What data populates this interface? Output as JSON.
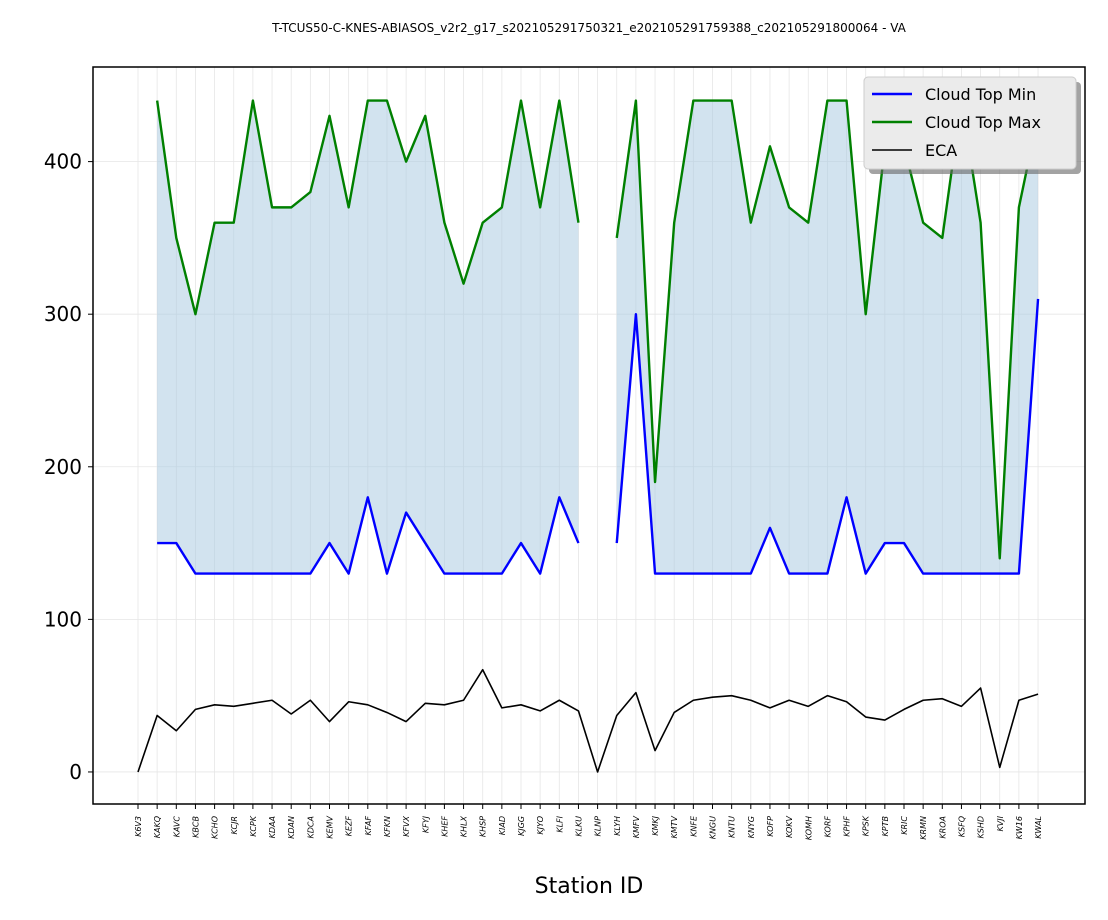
{
  "chart_data": {
    "type": "line",
    "title": "T-TCUS50-C-KNES-ABIASOS_v2r2_g17_s202105291750321_e202105291759388_c202105291800064 - VA",
    "xlabel": "Station ID",
    "ylabel": "",
    "ylim": [
      -21,
      462
    ],
    "yticks": [
      0,
      100,
      200,
      300,
      400
    ],
    "grid": true,
    "legend_position": "top-right",
    "categories": [
      "K6V3",
      "KAKQ",
      "KAVC",
      "KBCB",
      "KCHO",
      "KCJR",
      "KCPK",
      "KDAA",
      "KDAN",
      "KDCA",
      "KEMV",
      "KEZF",
      "KFAF",
      "KFKN",
      "KFVX",
      "KFYJ",
      "KHEF",
      "KHLX",
      "KHSP",
      "KIAD",
      "KJGG",
      "KJYO",
      "KLFI",
      "KLKU",
      "KLNP",
      "KLYH",
      "KMFV",
      "KMKJ",
      "KMTV",
      "KNFE",
      "KNGU",
      "KNTU",
      "KNYG",
      "KOFP",
      "KOKV",
      "KOMH",
      "KORF",
      "KPHF",
      "KPSK",
      "KPTB",
      "KRIC",
      "KRMN",
      "KROA",
      "KSFQ",
      "KSHD",
      "KVJI",
      "KW16",
      "KWAL"
    ],
    "series": [
      {
        "name": "Cloud Top Min",
        "color": "#0000ff",
        "values": [
          null,
          150,
          150,
          130,
          130,
          130,
          130,
          130,
          130,
          130,
          150,
          130,
          180,
          130,
          170,
          150,
          130,
          130,
          130,
          130,
          150,
          130,
          180,
          150,
          null,
          150,
          300,
          130,
          130,
          130,
          130,
          130,
          130,
          160,
          130,
          130,
          130,
          180,
          130,
          150,
          150,
          130,
          130,
          130,
          130,
          130,
          130,
          310
        ]
      },
      {
        "name": "Cloud Top Max",
        "color": "#008000",
        "values": [
          null,
          440,
          350,
          300,
          360,
          360,
          440,
          370,
          370,
          380,
          430,
          370,
          440,
          440,
          400,
          430,
          360,
          320,
          360,
          370,
          440,
          370,
          440,
          360,
          null,
          350,
          440,
          190,
          360,
          440,
          440,
          440,
          360,
          410,
          370,
          360,
          440,
          440,
          300,
          410,
          410,
          360,
          350,
          440,
          360,
          140,
          370,
          430
        ]
      },
      {
        "name": "ECA",
        "color": "#000000",
        "values": [
          0,
          37,
          27,
          41,
          44,
          43,
          45,
          47,
          38,
          47,
          33,
          46,
          44,
          39,
          33,
          45,
          44,
          47,
          67,
          42,
          44,
          40,
          47,
          40,
          0,
          37,
          52,
          14,
          39,
          47,
          49,
          50,
          47,
          42,
          47,
          43,
          50,
          46,
          36,
          34,
          41,
          47,
          48,
          43,
          55,
          3,
          47,
          51
        ]
      }
    ],
    "fill_between": {
      "lower": "Cloud Top Min",
      "upper": "Cloud Top Max",
      "color": "#a6c8e0"
    }
  }
}
